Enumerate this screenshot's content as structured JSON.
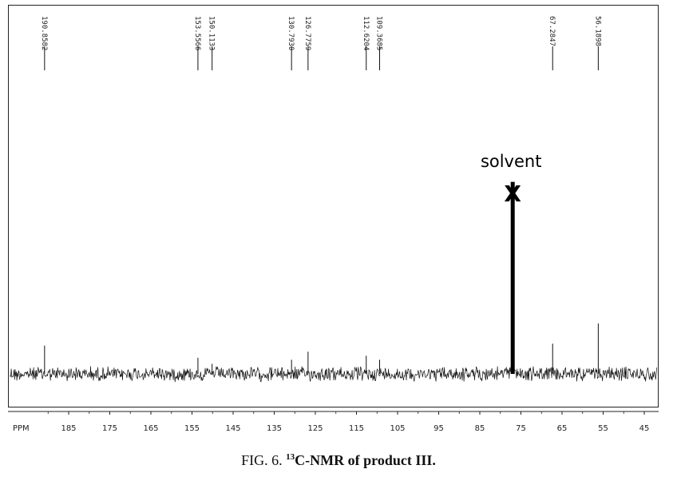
{
  "chart_data": {
    "type": "line",
    "title": "",
    "xlabel": "PPM",
    "ylabel": "",
    "x_reversed": true,
    "xlim": [
      193,
      43
    ],
    "ticks": [
      185,
      175,
      165,
      155,
      145,
      135,
      125,
      115,
      105,
      95,
      85,
      75,
      65,
      55,
      45
    ],
    "peaks": [
      {
        "ppm": 190.8582,
        "label": "190.8582",
        "height": 0.14
      },
      {
        "ppm": 153.5566,
        "label": "153.5566",
        "height": 0.08
      },
      {
        "ppm": 150.1133,
        "label": "150.1133",
        "height": 0.05
      },
      {
        "ppm": 130.793,
        "label": "130.7930",
        "height": 0.07
      },
      {
        "ppm": 126.7759,
        "label": "126.7759",
        "height": 0.11
      },
      {
        "ppm": 112.6204,
        "label": "112.6204",
        "height": 0.09
      },
      {
        "ppm": 109.3685,
        "label": "109.3685",
        "height": 0.07
      },
      {
        "ppm": 67.2847,
        "label": "67.2847",
        "height": 0.15
      },
      {
        "ppm": 56.1898,
        "label": "56.1898",
        "height": 0.25
      }
    ],
    "solvent": {
      "ppm": 77.0,
      "label": "solvent",
      "marker": "X",
      "height": 0.95
    },
    "noise_amplitude": 0.03
  },
  "caption": {
    "prefix": "FIG. 6.",
    "superscript": "13",
    "title": "C-NMR of product III."
  }
}
